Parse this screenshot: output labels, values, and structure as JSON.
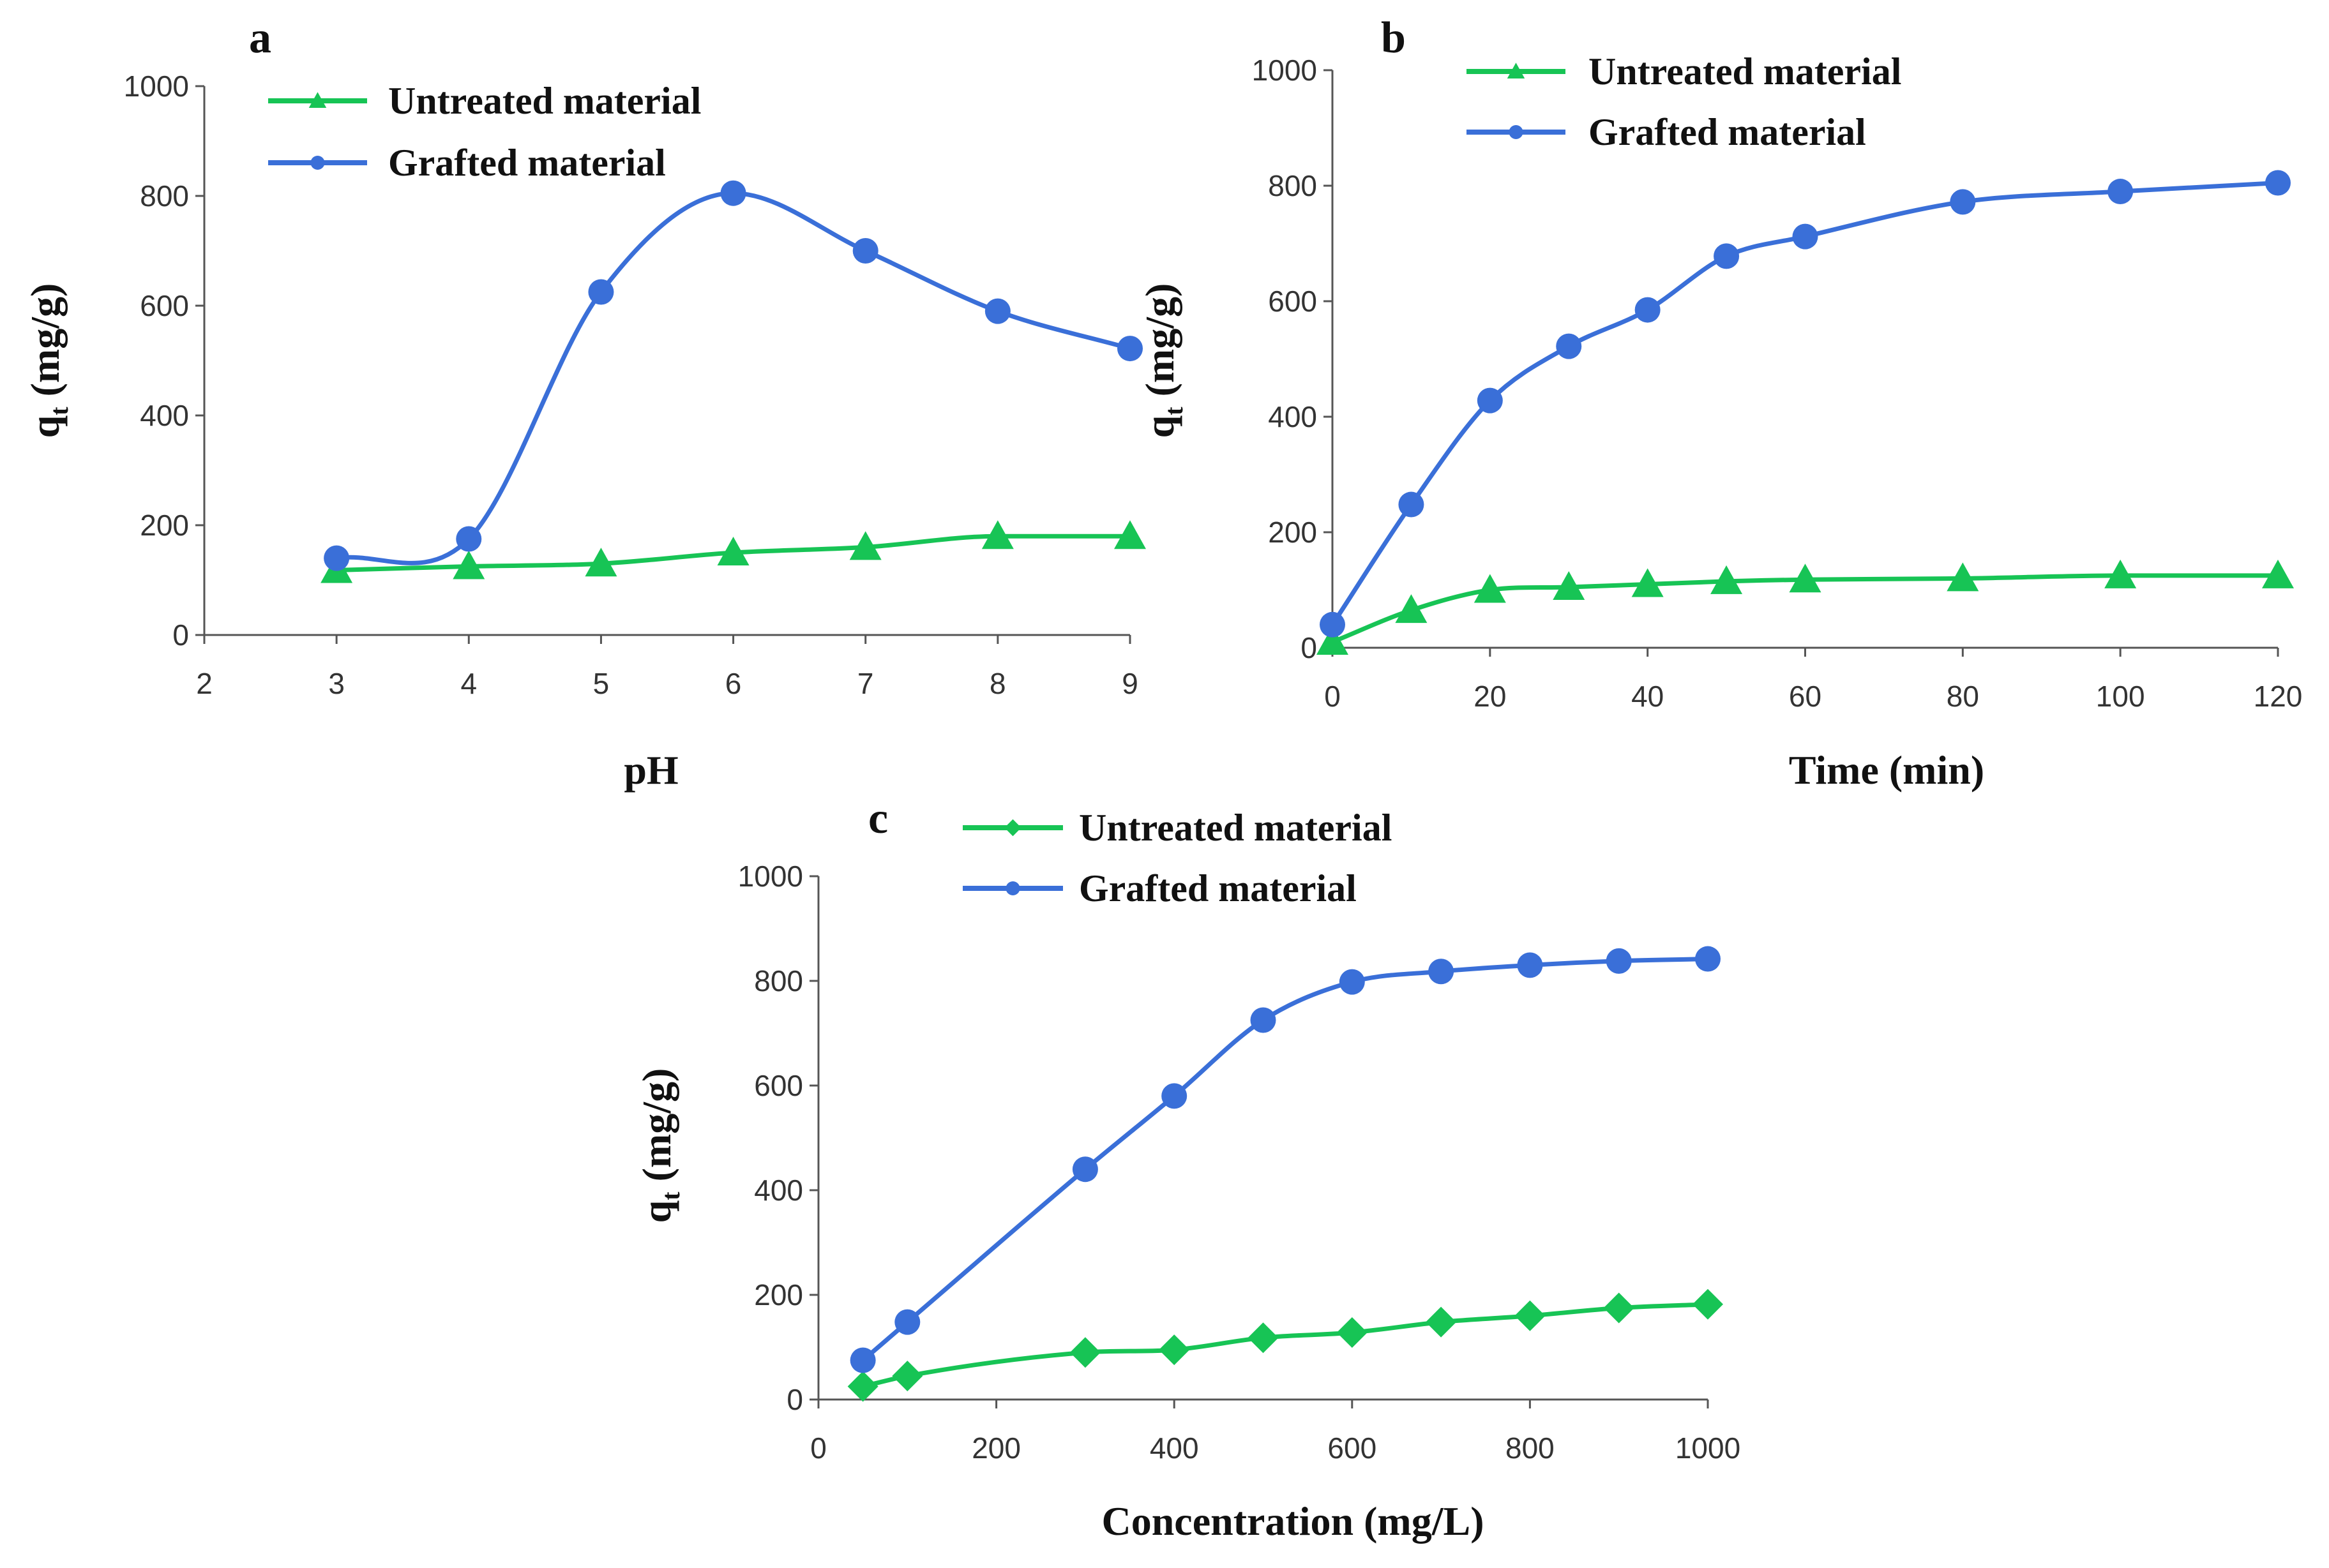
{
  "figure": {
    "colors": {
      "grafted": "#3a6fd8",
      "untreated": "#17c455",
      "axis": "#555555",
      "text": "#111111"
    }
  },
  "chart_data": [
    {
      "id": "a",
      "panel_label": "a",
      "type": "line",
      "xlabel": "pH",
      "ylabel": "qt (mg/g)",
      "ylabel_main": "q",
      "ylabel_sub": "t",
      "ylabel_rest": " (mg/g)",
      "xlim": [
        2,
        9
      ],
      "ylim": [
        0,
        1000
      ],
      "xticks": [
        2,
        3,
        4,
        5,
        6,
        7,
        8,
        9
      ],
      "yticks": [
        0,
        200,
        400,
        600,
        800,
        1000
      ],
      "legend": [
        "Untreated material",
        "Grafted material"
      ],
      "series": [
        {
          "name": "Untreated material",
          "marker": "triangle",
          "color": "#17c455",
          "x": [
            3,
            4,
            5,
            6,
            7,
            8,
            9
          ],
          "y": [
            118,
            125,
            130,
            150,
            160,
            180,
            180
          ]
        },
        {
          "name": "Grafted material",
          "marker": "circle",
          "color": "#3a6fd8",
          "x": [
            3,
            4,
            5,
            6,
            7,
            8,
            9
          ],
          "y": [
            140,
            175,
            625,
            805,
            700,
            590,
            522
          ]
        }
      ]
    },
    {
      "id": "b",
      "panel_label": "b",
      "type": "line",
      "xlabel": "Time (min)",
      "ylabel": "qt (mg/g)",
      "ylabel_main": "q",
      "ylabel_sub": "t",
      "ylabel_rest": " (mg/g)",
      "xlim": [
        0,
        120
      ],
      "ylim": [
        0,
        1000
      ],
      "xticks": [
        0,
        20,
        40,
        60,
        80,
        100,
        120
      ],
      "yticks": [
        0,
        200,
        400,
        600,
        800,
        1000
      ],
      "legend": [
        "Untreated material",
        "Grafted material"
      ],
      "series": [
        {
          "name": "Untreated material",
          "marker": "triangle",
          "color": "#17c455",
          "x": [
            0,
            10,
            20,
            30,
            40,
            50,
            60,
            80,
            100,
            120
          ],
          "y": [
            10,
            65,
            100,
            105,
            110,
            115,
            118,
            120,
            125,
            125
          ]
        },
        {
          "name": "Grafted material",
          "marker": "circle",
          "color": "#3a6fd8",
          "x": [
            0,
            10,
            20,
            30,
            40,
            50,
            60,
            80,
            100,
            120
          ],
          "y": [
            40,
            248,
            428,
            522,
            585,
            678,
            712,
            772,
            790,
            805
          ]
        }
      ]
    },
    {
      "id": "c",
      "panel_label": "c",
      "type": "line",
      "xlabel": "Concentration (mg/L)",
      "ylabel": "qt (mg/g)",
      "ylabel_main": "q",
      "ylabel_sub": "t",
      "ylabel_rest": " (mg/g)",
      "xlim": [
        0,
        1000
      ],
      "ylim": [
        0,
        1000
      ],
      "xticks": [
        0,
        200,
        400,
        600,
        800,
        1000
      ],
      "yticks": [
        0,
        200,
        400,
        600,
        800,
        1000
      ],
      "legend": [
        "Untreated material",
        "Grafted material"
      ],
      "series": [
        {
          "name": "Untreated material",
          "marker": "diamond",
          "color": "#17c455",
          "x": [
            50,
            100,
            300,
            400,
            500,
            600,
            700,
            800,
            900,
            1000
          ],
          "y": [
            25,
            45,
            90,
            95,
            118,
            128,
            148,
            160,
            175,
            182
          ]
        },
        {
          "name": "Grafted material",
          "marker": "circle",
          "color": "#3a6fd8",
          "x": [
            50,
            100,
            300,
            400,
            500,
            600,
            700,
            800,
            900,
            1000
          ],
          "y": [
            75,
            148,
            440,
            580,
            725,
            798,
            818,
            830,
            838,
            842
          ]
        }
      ]
    }
  ]
}
